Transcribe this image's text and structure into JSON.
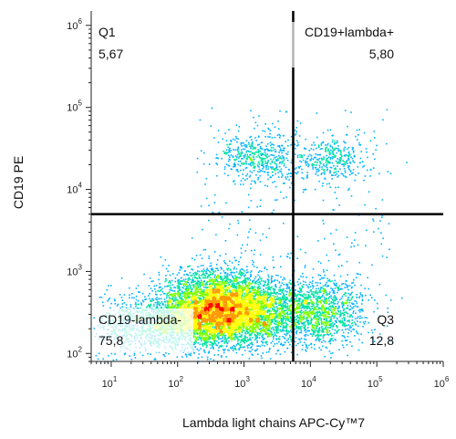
{
  "chart_data": {
    "type": "scatter",
    "title": "",
    "xlabel": "Lambda light chains APC-Cy™7",
    "ylabel": "CD19 PE",
    "x_scale": "log",
    "y_scale": "log",
    "xlim": [
      5,
      1000000
    ],
    "ylim": [
      80,
      1500000
    ],
    "x_ticks": [
      {
        "base": "10",
        "exp": "1"
      },
      {
        "base": "10",
        "exp": "2"
      },
      {
        "base": "10",
        "exp": "3"
      },
      {
        "base": "10",
        "exp": "4"
      },
      {
        "base": "10",
        "exp": "5"
      },
      {
        "base": "10",
        "exp": "6"
      }
    ],
    "y_ticks": [
      {
        "base": "10",
        "exp": "2"
      },
      {
        "base": "10",
        "exp": "3"
      },
      {
        "base": "10",
        "exp": "4"
      },
      {
        "base": "10",
        "exp": "5"
      },
      {
        "base": "10",
        "exp": "6"
      }
    ],
    "gate": {
      "x": 5500,
      "y": 5000
    },
    "quadrants": [
      {
        "name": "Q1",
        "value": "5,67",
        "position": "top-left"
      },
      {
        "name": "CD19+lambda+",
        "value": "5,80",
        "position": "top-right"
      },
      {
        "name": "CD19-lambda-",
        "value": "75,8",
        "position": "bottom-left"
      },
      {
        "name": "Q3",
        "value": "12,8",
        "position": "bottom-right"
      }
    ],
    "populations": [
      {
        "x": 400,
        "y": 350,
        "sx": 0.42,
        "sy": 0.22,
        "weight": 0.55
      },
      {
        "x": 2500,
        "y": 330,
        "sx": 0.45,
        "sy": 0.2,
        "weight": 0.14
      },
      {
        "x": 40,
        "y": 230,
        "sx": 0.45,
        "sy": 0.18,
        "weight": 0.12
      },
      {
        "x": 15000,
        "y": 320,
        "sx": 0.3,
        "sy": 0.2,
        "weight": 0.1
      },
      {
        "x": 1600,
        "y": 25000,
        "sx": 0.28,
        "sy": 0.15,
        "weight": 0.05
      },
      {
        "x": 20000,
        "y": 24000,
        "sx": 0.3,
        "sy": 0.15,
        "weight": 0.04
      }
    ],
    "grid": false,
    "colormap": [
      "#1f1fff",
      "#00b4ff",
      "#00e5a0",
      "#7fff00",
      "#ffff00",
      "#ff9900",
      "#ff0000"
    ]
  }
}
